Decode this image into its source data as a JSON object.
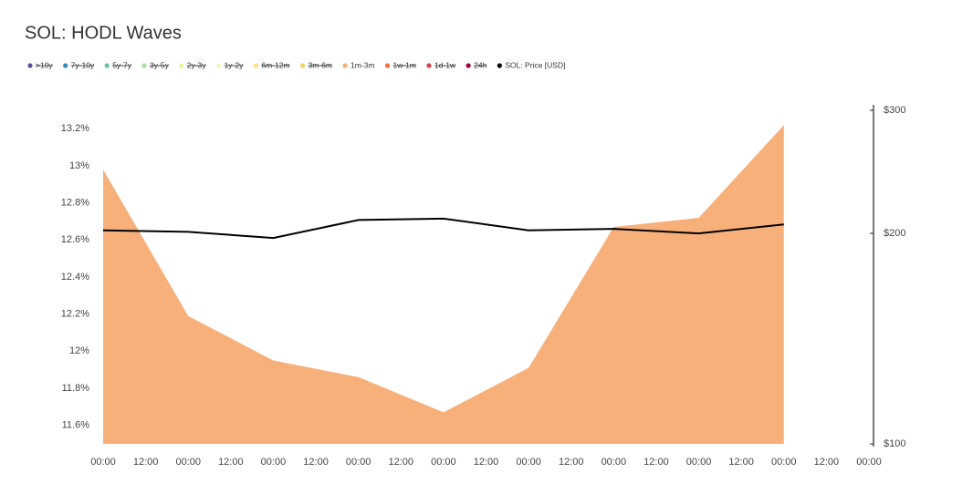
{
  "chart_data": {
    "type": "area",
    "title": "SOL: HODL Waves",
    "xlim": [
      0,
      216
    ],
    "xticks": [
      {
        "value": 0,
        "label": "00:00"
      },
      {
        "value": 12,
        "label": "12:00"
      },
      {
        "value": 24,
        "label": "00:00"
      },
      {
        "value": 36,
        "label": "12:00"
      },
      {
        "value": 48,
        "label": "00:00"
      },
      {
        "value": 60,
        "label": "12:00"
      },
      {
        "value": 72,
        "label": "00:00"
      },
      {
        "value": 84,
        "label": "12:00"
      },
      {
        "value": 96,
        "label": "00:00"
      },
      {
        "value": 108,
        "label": "12:00"
      },
      {
        "value": 120,
        "label": "00:00"
      },
      {
        "value": 132,
        "label": "12:00"
      },
      {
        "value": 144,
        "label": "00:00"
      },
      {
        "value": 156,
        "label": "12:00"
      },
      {
        "value": 168,
        "label": "00:00"
      },
      {
        "value": 180,
        "label": "12:00"
      },
      {
        "value": 192,
        "label": "00:00"
      },
      {
        "value": 204,
        "label": "12:00"
      },
      {
        "value": 216,
        "label": "00:00"
      }
    ],
    "ylim": [
      11.5,
      13.3
    ],
    "yticks": [
      {
        "value": 11.6,
        "label": "11.6%"
      },
      {
        "value": 11.8,
        "label": "11.8%"
      },
      {
        "value": 12,
        "label": "12%"
      },
      {
        "value": 12.2,
        "label": "12.2%"
      },
      {
        "value": 12.4,
        "label": "12.4%"
      },
      {
        "value": 12.6,
        "label": "12.6%"
      },
      {
        "value": 12.8,
        "label": "12.8%"
      },
      {
        "value": 13,
        "label": "13%"
      },
      {
        "value": 13.2,
        "label": "13.2%"
      }
    ],
    "y2lim": [
      100,
      300
    ],
    "y2log": true,
    "y2ticks": [
      {
        "value": 100,
        "label": "$100"
      },
      {
        "value": 200,
        "label": "$200"
      },
      {
        "value": 300,
        "label": "$300"
      }
    ],
    "x": [
      0,
      24,
      48,
      72,
      96,
      120,
      144,
      168,
      192
    ],
    "series": [
      {
        "name": ">10y",
        "color": "#5e4fa2",
        "hidden": true
      },
      {
        "name": "7y-10y",
        "color": "#3288bd",
        "hidden": true
      },
      {
        "name": "5y-7y",
        "color": "#66c2a5",
        "hidden": true
      },
      {
        "name": "3y-5y",
        "color": "#abdda4",
        "hidden": true
      },
      {
        "name": "2y-3y",
        "color": "#e6f598",
        "hidden": true
      },
      {
        "name": "1y-2y",
        "color": "#f4f7c0",
        "hidden": true
      },
      {
        "name": "6m-12m",
        "color": "#fee08b",
        "hidden": true
      },
      {
        "name": "3m-6m",
        "color": "#f0d060",
        "hidden": true
      },
      {
        "name": "1m-3m",
        "color": "#f8b07a",
        "values": [
          12.98,
          12.19,
          11.95,
          11.86,
          11.67,
          11.91,
          12.67,
          12.72,
          13.22
        ]
      },
      {
        "name": "1w-1m",
        "color": "#f46d43",
        "hidden": true
      },
      {
        "name": "1d-1w",
        "color": "#d53e4f",
        "hidden": true
      },
      {
        "name": "24h",
        "color": "#9e0142",
        "hidden": true
      },
      {
        "name": "SOL: Price [USD]",
        "color": "#000000",
        "axis": "y2",
        "line": true,
        "values": [
          202,
          201,
          197,
          209,
          210,
          202,
          203,
          200,
          206
        ]
      }
    ]
  }
}
